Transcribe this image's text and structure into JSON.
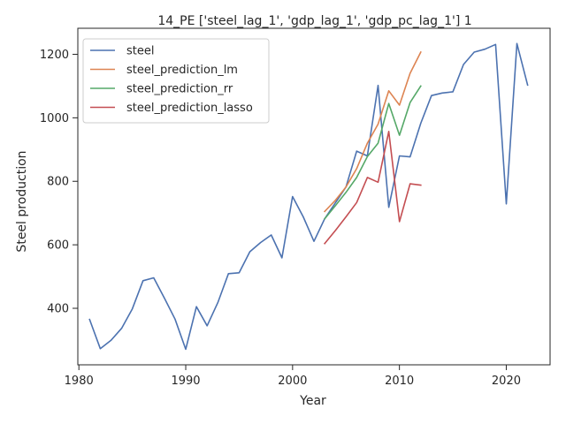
{
  "chart_data": {
    "type": "line",
    "title": "14_PE ['steel_lag_1', 'gdp_lag_1', 'gdp_pc_lag_1'] 1",
    "xlabel": "Year",
    "ylabel": "Steel production",
    "xlim": [
      1979.9,
      2024.1
    ],
    "ylim": [
      222,
      1282
    ],
    "xticks": [
      1980,
      1990,
      2000,
      2010,
      2020
    ],
    "yticks": [
      400,
      600,
      800,
      1000,
      1200
    ],
    "grid": false,
    "legend_position": "top-left",
    "series": [
      {
        "name": "steel",
        "color": "#4c72b0",
        "x": [
          1981,
          1982,
          1983,
          1984,
          1985,
          1986,
          1987,
          1988,
          1989,
          1990,
          1991,
          1992,
          1993,
          1994,
          1995,
          1996,
          1997,
          1998,
          1999,
          2000,
          2001,
          2002,
          2003,
          2004,
          2005,
          2006,
          2007,
          2008,
          2009,
          2010,
          2011,
          2012,
          2013,
          2014,
          2015,
          2016,
          2017,
          2018,
          2019,
          2020,
          2021,
          2022
        ],
        "y": [
          365,
          273,
          299,
          337,
          398,
          487,
          496,
          432,
          366,
          271,
          405,
          345,
          418,
          509,
          512,
          578,
          607,
          631,
          559,
          752,
          688,
          611,
          682,
          732,
          782,
          895,
          880,
          1102,
          718,
          880,
          877,
          983,
          1070,
          1078,
          1082,
          1168,
          1207,
          1216,
          1231,
          729,
          1234,
          1103
        ]
      },
      {
        "name": "steel_prediction_lm",
        "color": "#dd8452",
        "x": [
          2003,
          2004,
          2005,
          2006,
          2007,
          2008,
          2009,
          2010,
          2011,
          2012
        ],
        "y": [
          705,
          740,
          782,
          840,
          920,
          980,
          1085,
          1040,
          1140,
          1207
        ]
      },
      {
        "name": "steel_prediction_rr",
        "color": "#55a868",
        "x": [
          2003,
          2004,
          2005,
          2006,
          2007,
          2008,
          2009,
          2010,
          2011,
          2012
        ],
        "y": [
          682,
          723,
          765,
          812,
          878,
          920,
          1045,
          945,
          1048,
          1100
        ]
      },
      {
        "name": "steel_prediction_lasso",
        "color": "#c44e52",
        "x": [
          2003,
          2004,
          2005,
          2006,
          2007,
          2008,
          2009,
          2010,
          2011,
          2012
        ],
        "y": [
          604,
          645,
          688,
          733,
          812,
          797,
          957,
          673,
          792,
          788
        ]
      }
    ]
  }
}
